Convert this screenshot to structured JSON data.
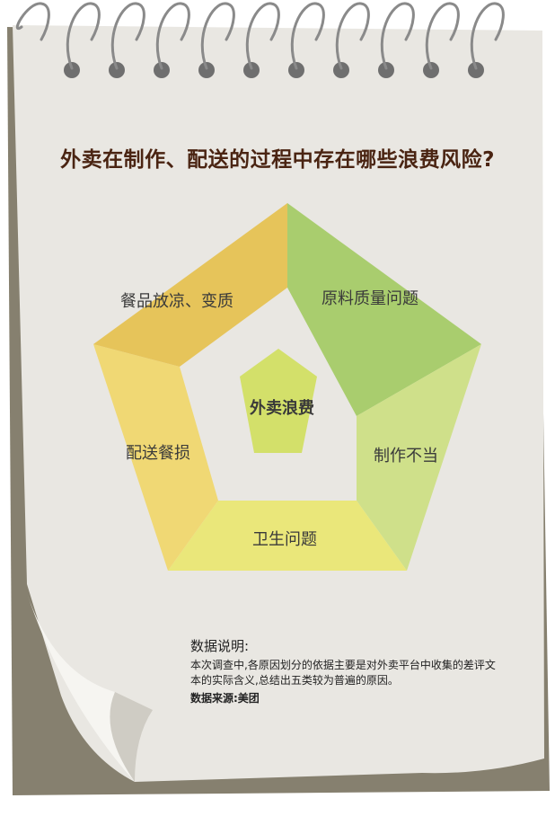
{
  "title": "外卖在制作、配送的过程中存在哪些浪费风险?",
  "center": "外卖浪费",
  "segments": [
    {
      "label": "原料质量问题",
      "color": "#a9cd6e"
    },
    {
      "label": "制作不当",
      "color": "#cfe08a"
    },
    {
      "label": "卫生问题",
      "color": "#eae77a"
    },
    {
      "label": "配送餐损",
      "color": "#f0d874"
    },
    {
      "label": "餐品放凉、变质",
      "color": "#e6c45a"
    }
  ],
  "center_color": "#d3e06a",
  "note": {
    "heading": "数据说明:",
    "body": "本次调查中,各原因划分的依据主要是对外卖平台中收集的差评文本的实际含义,总结出五类较为普遍的原因。",
    "source": "数据来源:美团"
  }
}
